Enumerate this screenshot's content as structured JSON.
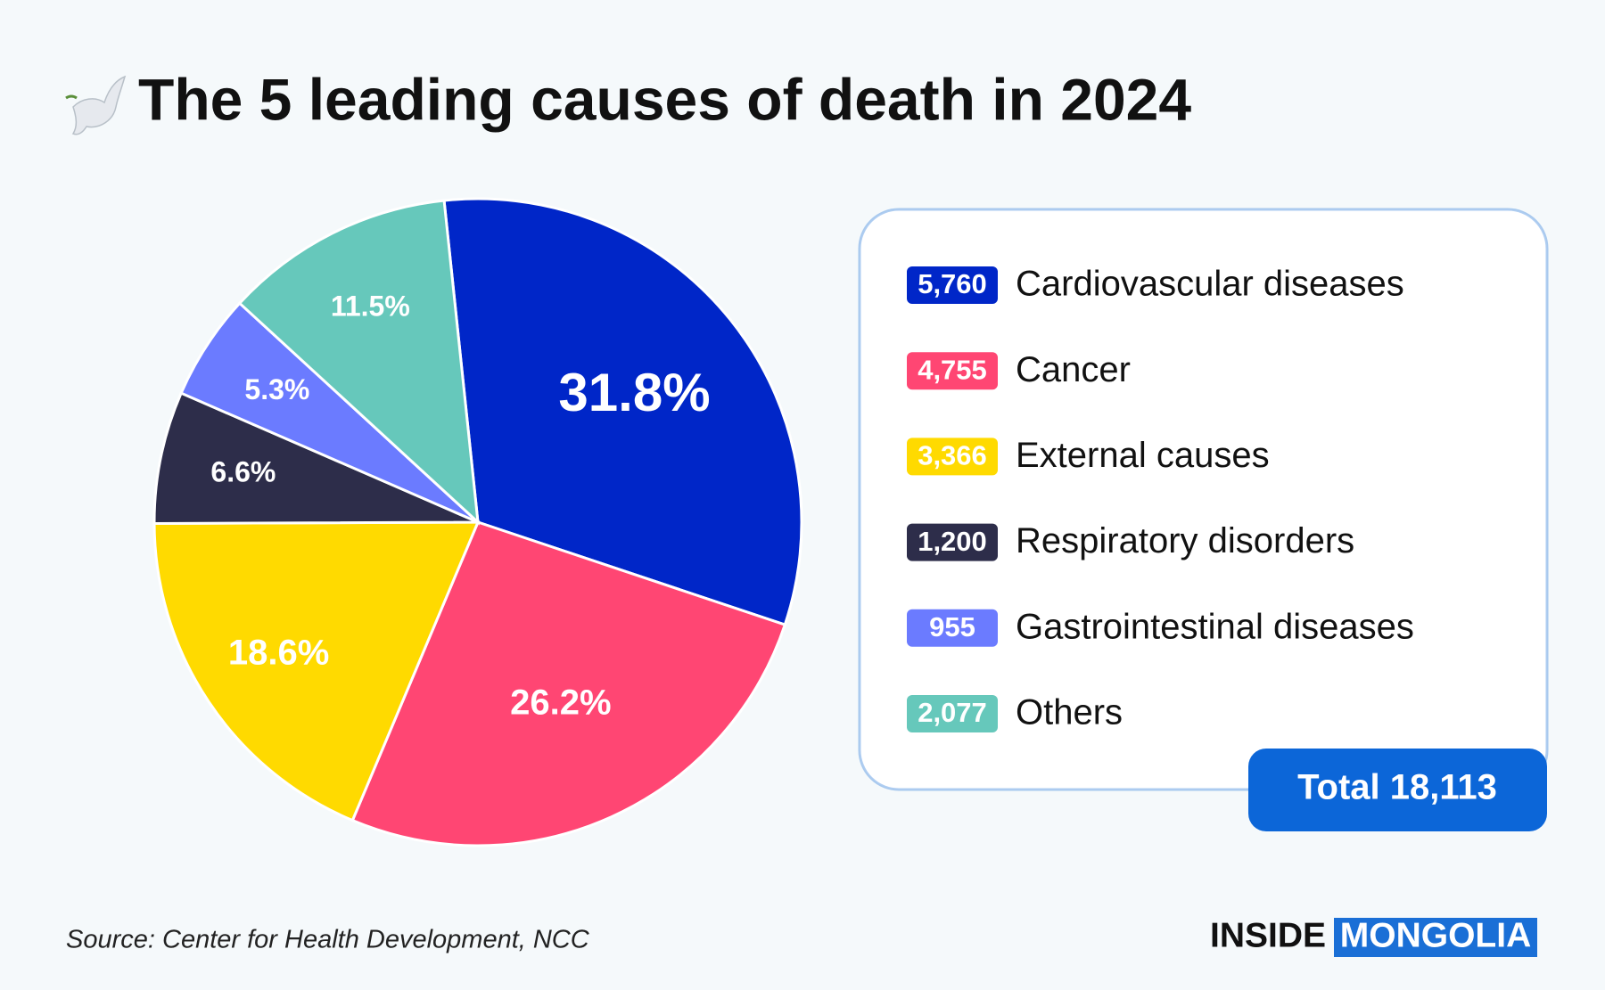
{
  "chart_data": {
    "type": "pie",
    "title": "The 5 leading causes of death in 2024",
    "categories": [
      "Cardiovascular diseases",
      "Cancer",
      "External causes",
      "Respiratory disorders",
      "Gastrointestinal diseases",
      "Others"
    ],
    "values": [
      31.8,
      26.2,
      18.6,
      6.6,
      5.3,
      11.5
    ],
    "value_labels": [
      "31.8%",
      "26.2%",
      "18.6%",
      "6.6%",
      "5.3%",
      "11.5%"
    ],
    "counts": [
      5760,
      4755,
      3366,
      1200,
      955,
      2077
    ],
    "count_labels": [
      "5,760",
      "4,755",
      "3,366",
      "1,200",
      "955",
      "2,077"
    ],
    "colors": [
      "#0026c8",
      "#ff4673",
      "#ffda00",
      "#2d2d4a",
      "#6b7bff",
      "#66c8bb"
    ],
    "total": {
      "value": 18113,
      "label": "Total 18,113"
    },
    "source": "Source: Center for Health Development, NCC",
    "brand": [
      "INSIDE",
      "MONGOLIA"
    ]
  }
}
